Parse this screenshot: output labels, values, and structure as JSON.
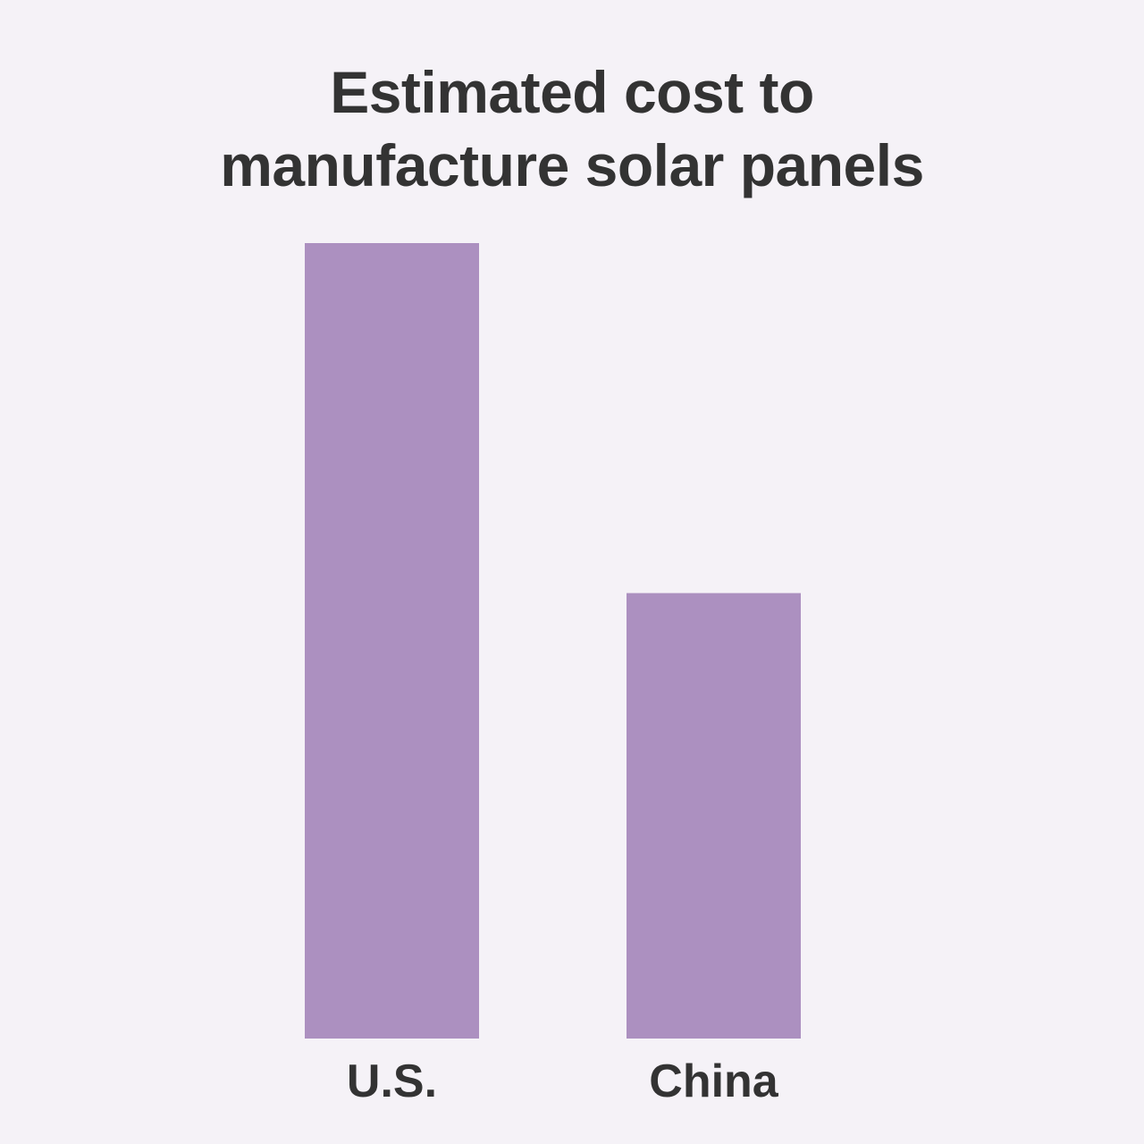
{
  "chart_data": {
    "type": "bar",
    "title_lines": [
      "Estimated cost to",
      "manufacture solar panels"
    ],
    "categories": [
      "U.S.",
      "China"
    ],
    "values": [
      100,
      56
    ],
    "ylim": [
      0,
      100
    ],
    "xlabel": "",
    "ylabel": "",
    "grid": false,
    "legend": "none",
    "bar_color": "#ac90c0",
    "text_color": "#333333",
    "background_color": "#f5f2f7"
  }
}
